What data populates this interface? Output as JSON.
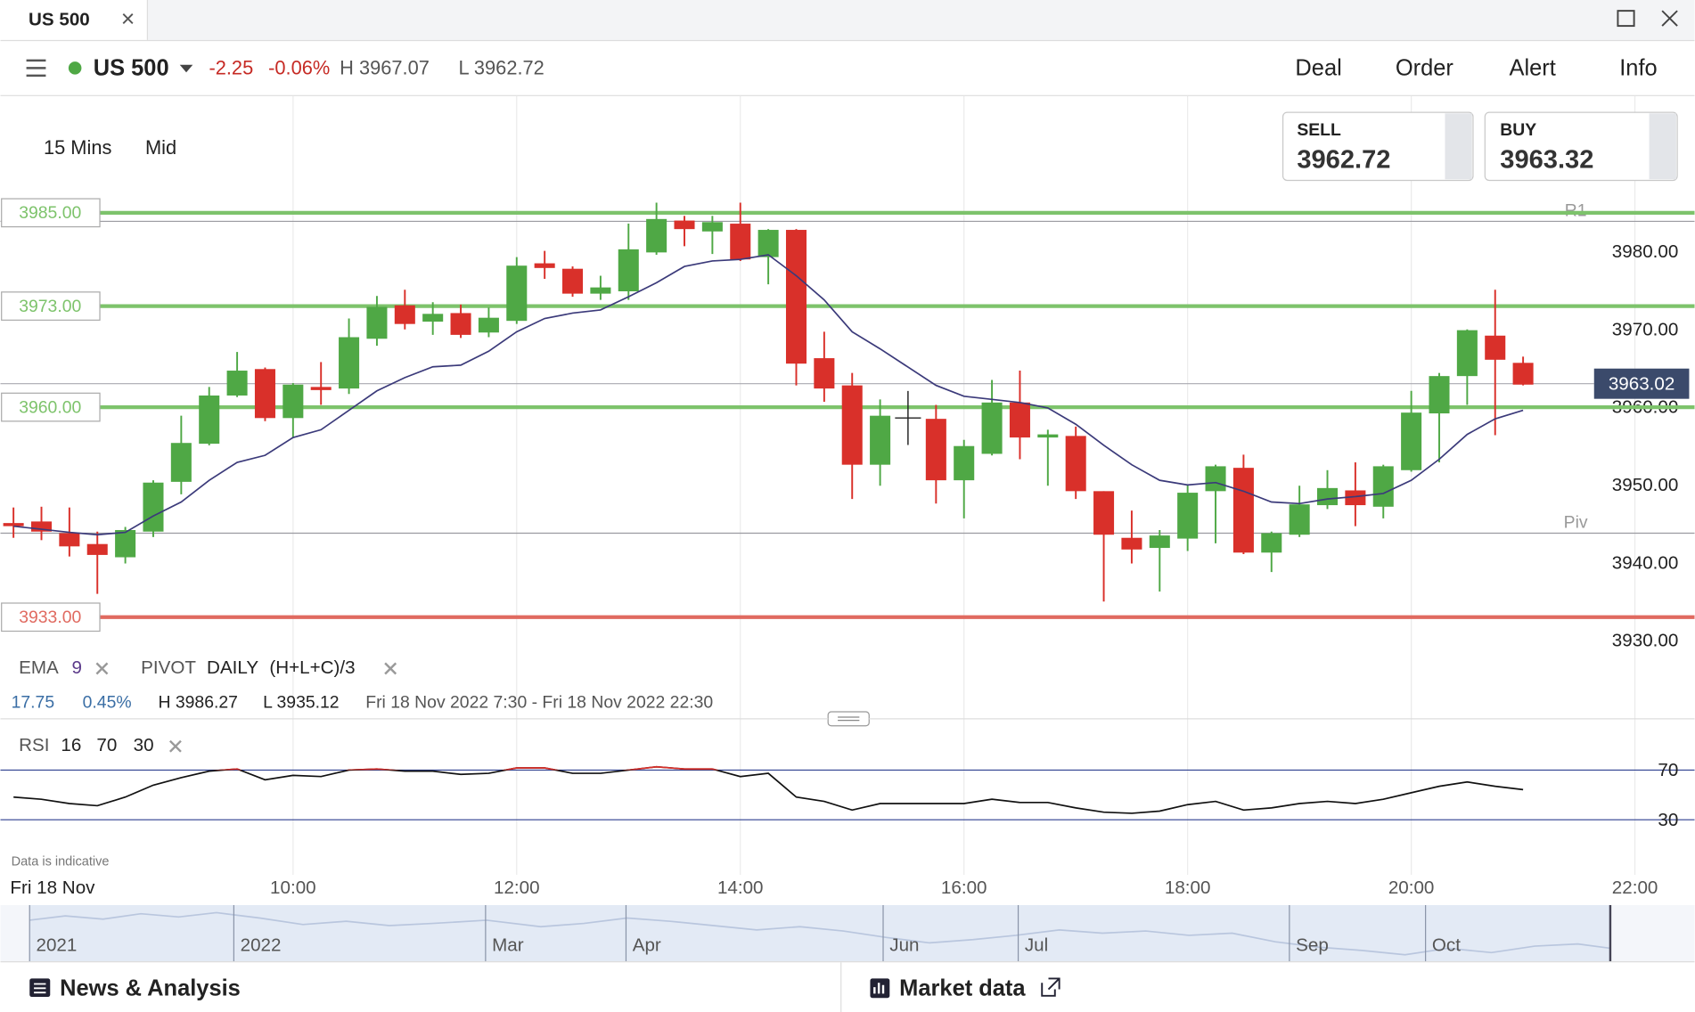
{
  "tab": {
    "title": "US 500",
    "close": "×"
  },
  "header": {
    "instrument": "US 500",
    "change": "-2.25",
    "change_pct": "-0.06%",
    "high": "H 3967.07",
    "low": "L 3962.72",
    "menu": [
      "Deal",
      "Order",
      "Alert",
      "Info"
    ]
  },
  "toolbar": {
    "interval": "15 Mins",
    "price_type": "Mid"
  },
  "quote": {
    "sell_label": "SELL",
    "sell": "3962.72",
    "buy_label": "BUY",
    "buy": "3963.32"
  },
  "chart_data": {
    "type": "candlestick",
    "x": [
      "07:30",
      "07:45",
      "08:00",
      "08:15",
      "08:30",
      "08:45",
      "09:00",
      "09:15",
      "09:30",
      "09:45",
      "10:00",
      "10:15",
      "10:30",
      "10:45",
      "11:00",
      "11:15",
      "11:30",
      "11:45",
      "12:00",
      "12:15",
      "12:30",
      "12:45",
      "13:00",
      "13:15",
      "13:30",
      "13:45",
      "14:00",
      "14:15",
      "14:30",
      "14:45",
      "15:00",
      "15:15",
      "15:45",
      "16:00",
      "16:15",
      "16:30",
      "16:45",
      "17:00",
      "17:15",
      "17:30",
      "17:45",
      "18:00",
      "18:15",
      "18:30",
      "18:45",
      "19:00",
      "19:15",
      "19:30",
      "19:45",
      "20:00",
      "20:15",
      "20:30",
      "20:45",
      "21:00"
    ],
    "open": [
      3945.1,
      3945.3,
      3943.8,
      3942.4,
      3940.7,
      3944.0,
      3950.4,
      3955.3,
      3961.5,
      3964.9,
      3958.6,
      3962.6,
      3962.4,
      3968.8,
      3973.1,
      3971.0,
      3972.1,
      3969.6,
      3971.1,
      3978.5,
      3977.8,
      3974.6,
      3974.9,
      3979.9,
      3984.0,
      3982.6,
      3983.6,
      3979.3,
      3982.8,
      3966.3,
      3962.8,
      3952.6,
      3958.5,
      3950.6,
      3954.0,
      3960.6,
      3956.1,
      3956.3,
      3949.2,
      3943.2,
      3941.9,
      3943.1,
      3949.2,
      3952.2,
      3941.3,
      3943.6,
      3947.4,
      3949.3,
      3947.2,
      3951.9,
      3959.2,
      3964.0,
      3969.2,
      3965.7
    ],
    "high": [
      3947.1,
      3947.2,
      3947.1,
      3944.0,
      3944.6,
      3950.6,
      3958.9,
      3962.6,
      3967.1,
      3965.1,
      3963.1,
      3965.8,
      3971.4,
      3974.3,
      3975.1,
      3973.5,
      3973.2,
      3972.8,
      3979.3,
      3980.1,
      3978.1,
      3976.9,
      3983.6,
      3986.3,
      3984.6,
      3984.6,
      3986.3,
      3982.9,
      3982.9,
      3969.7,
      3964.4,
      3961.0,
      3960.3,
      3955.8,
      3963.5,
      3964.7,
      3957.1,
      3957.5,
      3949.2,
      3946.7,
      3944.2,
      3950.1,
      3952.6,
      3953.9,
      3944.0,
      3949.9,
      3951.9,
      3952.9,
      3952.6,
      3962.1,
      3964.4,
      3970.0,
      3975.1,
      3966.5
    ],
    "low": [
      3943.2,
      3942.9,
      3940.8,
      3936.0,
      3939.9,
      3943.3,
      3948.8,
      3955.1,
      3961.3,
      3958.2,
      3956.1,
      3960.3,
      3961.7,
      3967.9,
      3970.0,
      3969.3,
      3968.9,
      3969.0,
      3970.7,
      3976.5,
      3974.2,
      3973.8,
      3973.8,
      3979.6,
      3980.7,
      3979.7,
      3978.8,
      3975.8,
      3962.8,
      3960.7,
      3948.2,
      3949.9,
      3947.6,
      3945.7,
      3953.8,
      3953.3,
      3949.9,
      3948.2,
      3935.0,
      3939.9,
      3936.3,
      3941.5,
      3942.5,
      3941.1,
      3938.8,
      3943.3,
      3946.9,
      3944.7,
      3945.7,
      3951.7,
      3952.9,
      3960.3,
      3956.4,
      3962.8
    ],
    "close": [
      3944.7,
      3944.0,
      3942.1,
      3941.0,
      3944.2,
      3950.3,
      3955.4,
      3961.5,
      3964.7,
      3958.6,
      3962.9,
      3962.2,
      3969.0,
      3972.9,
      3970.7,
      3972.0,
      3969.3,
      3971.5,
      3978.2,
      3977.9,
      3974.6,
      3975.4,
      3980.3,
      3984.2,
      3982.9,
      3983.8,
      3979.0,
      3982.8,
      3965.6,
      3962.4,
      3952.6,
      3958.9,
      3950.6,
      3955.0,
      3960.6,
      3956.1,
      3956.5,
      3949.2,
      3943.6,
      3941.7,
      3943.5,
      3949.0,
      3952.4,
      3941.3,
      3943.8,
      3947.5,
      3949.6,
      3947.4,
      3952.4,
      3959.3,
      3964.0,
      3969.9,
      3966.1,
      3962.9
    ],
    "up_color": "#4fa845",
    "down_color": "#d9302a",
    "xlim": [
      "07:23",
      "22:32"
    ],
    "xticks": [
      "10:00",
      "12:00",
      "14:00",
      "16:00",
      "18:00",
      "20:00",
      "22:00"
    ],
    "date_label": "Fri 18 Nov",
    "ylim": [
      3929,
      4000
    ],
    "yticks": [
      {
        "value": 3930,
        "label": "3930.00"
      },
      {
        "value": 3940,
        "label": "3940.00"
      },
      {
        "value": 3950,
        "label": "3950.00"
      },
      {
        "value": 3960,
        "label": "3960.00"
      },
      {
        "value": 3970,
        "label": "3970.00"
      },
      {
        "value": 3980,
        "label": "3980.00"
      }
    ],
    "levels": [
      {
        "value": 3985,
        "label": "3985.00",
        "color": "#7dc36b"
      },
      {
        "value": 3973,
        "label": "3973.00",
        "color": "#7dc36b"
      },
      {
        "value": 3960,
        "label": "3960.00",
        "color": "#7dc36b"
      },
      {
        "value": 3933,
        "label": "3933.00",
        "color": "#e06a60"
      }
    ],
    "current_price": {
      "value": 3963.02,
      "label": "3963.02"
    },
    "ema": {
      "label": "EMA",
      "period": "9",
      "color": "#3b3a7a",
      "values": [
        3944.7,
        3944.3,
        3943.9,
        3943.6,
        3943.9,
        3946.0,
        3947.8,
        3950.6,
        3952.9,
        3953.8,
        3956.1,
        3957.1,
        3959.6,
        3962.1,
        3963.8,
        3965.2,
        3965.4,
        3967.2,
        3969.7,
        3971.4,
        3972.1,
        3972.5,
        3974.2,
        3976.0,
        3978.1,
        3978.8,
        3979.0,
        3979.6,
        3976.9,
        3973.8,
        3969.7,
        3967.5,
        3962.8,
        3961.4,
        3961.0,
        3960.6,
        3959.9,
        3957.8,
        3955.1,
        3952.6,
        3950.6,
        3950.0,
        3950.3,
        3949.2,
        3947.8,
        3947.6,
        3948.2,
        3948.5,
        3948.9,
        3950.6,
        3953.3,
        3956.5,
        3958.5,
        3959.6
      ]
    },
    "pivot": {
      "label": "PIVOT",
      "period": "DAILY",
      "formula": "(H+L+C)/3",
      "levels": [
        {
          "name": "R1",
          "value": 3983.9
        },
        {
          "name": "Piv",
          "value": 3943.8
        }
      ]
    },
    "stats": {
      "change": "17.75",
      "change_pct": "0.45%",
      "high": "H 3986.27",
      "low": "L 3935.12",
      "range": "Fri 18 Nov 2022 7:30 - Fri 18 Nov 2022 22:30"
    },
    "rsi": {
      "label": "RSI",
      "params": [
        "16",
        "70",
        "30"
      ],
      "color": "#111111",
      "overbought_color": "#d9302a",
      "level_color": "#2d3f8f",
      "values": [
        48.3,
        46.5,
        43.0,
        41.3,
        48.3,
        57.8,
        63.9,
        69.1,
        70.9,
        62.2,
        65.7,
        64.8,
        70.0,
        70.9,
        69.1,
        69.1,
        66.5,
        67.4,
        71.7,
        71.7,
        67.4,
        67.4,
        70.0,
        72.6,
        70.9,
        70.9,
        64.8,
        67.4,
        48.3,
        44.8,
        37.8,
        43.0,
        43.0,
        43.0,
        46.5,
        43.9,
        43.9,
        39.6,
        36.1,
        35.2,
        37.0,
        42.2,
        44.8,
        37.8,
        39.6,
        43.0,
        44.8,
        43.0,
        46.5,
        51.7,
        57.0,
        60.4,
        57.0,
        54.3
      ],
      "ylim": [
        0,
        100
      ],
      "yticks": [
        30,
        70
      ]
    },
    "note": "Data is indicative"
  },
  "navigator": {
    "labels": [
      "2021",
      "2022",
      "Mar",
      "Apr",
      "Jun",
      "Jul",
      "Sep",
      "Oct"
    ]
  },
  "footer": {
    "news": "News & Analysis",
    "market": "Market data"
  }
}
